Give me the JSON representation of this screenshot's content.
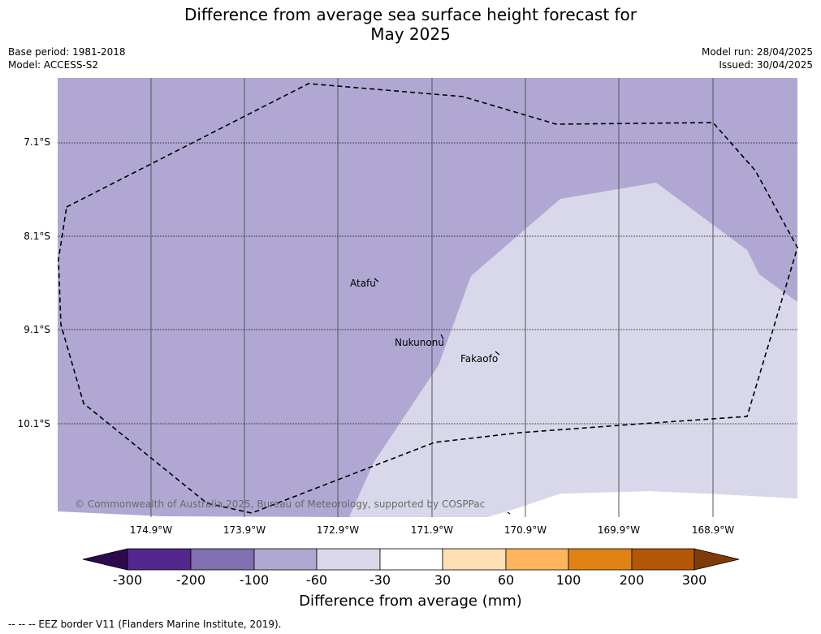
{
  "title_line1": "Difference from average sea surface height forecast for",
  "title_line2": "May 2025",
  "base_period": "Base period: 1981-2018",
  "model": "Model: ACCESS-S2",
  "model_run": "Model run: 28/04/2025",
  "issued": "Issued: 30/04/2025",
  "latitudes": [
    "7.1°S",
    "8.1°S",
    "9.1°S",
    "10.1°S"
  ],
  "longitudes": [
    "174.9°W",
    "173.9°W",
    "172.9°W",
    "171.9°W",
    "170.9°W",
    "169.9°W",
    "168.9°W"
  ],
  "places": [
    "Atafu",
    "Nukunonu",
    "Fakaofo"
  ],
  "copyright": "© Commonwealth of Australia 2025, Bureau of Meteorology, supported by COSPPac",
  "colorbar": {
    "title": "Difference from average (mm)",
    "ticks": [
      "-300",
      "-200",
      "-100",
      "-60",
      "-30",
      "30",
      "60",
      "100",
      "200",
      "300"
    ],
    "colors": [
      "#2d0a4e",
      "#54278f",
      "#8070b0",
      "#b0a8d2",
      "#d8d8ea",
      "#ffffff",
      "#fedfb3",
      "#fcb45e",
      "#e08214",
      "#b35806",
      "#7f3b08"
    ]
  },
  "legend_footnote": "-- -- -- EEZ border V11 (Flanders Marine Institute, 2019).",
  "map_colors": {
    "low": "#b0a8d2",
    "mid": "#d8d8ea"
  }
}
